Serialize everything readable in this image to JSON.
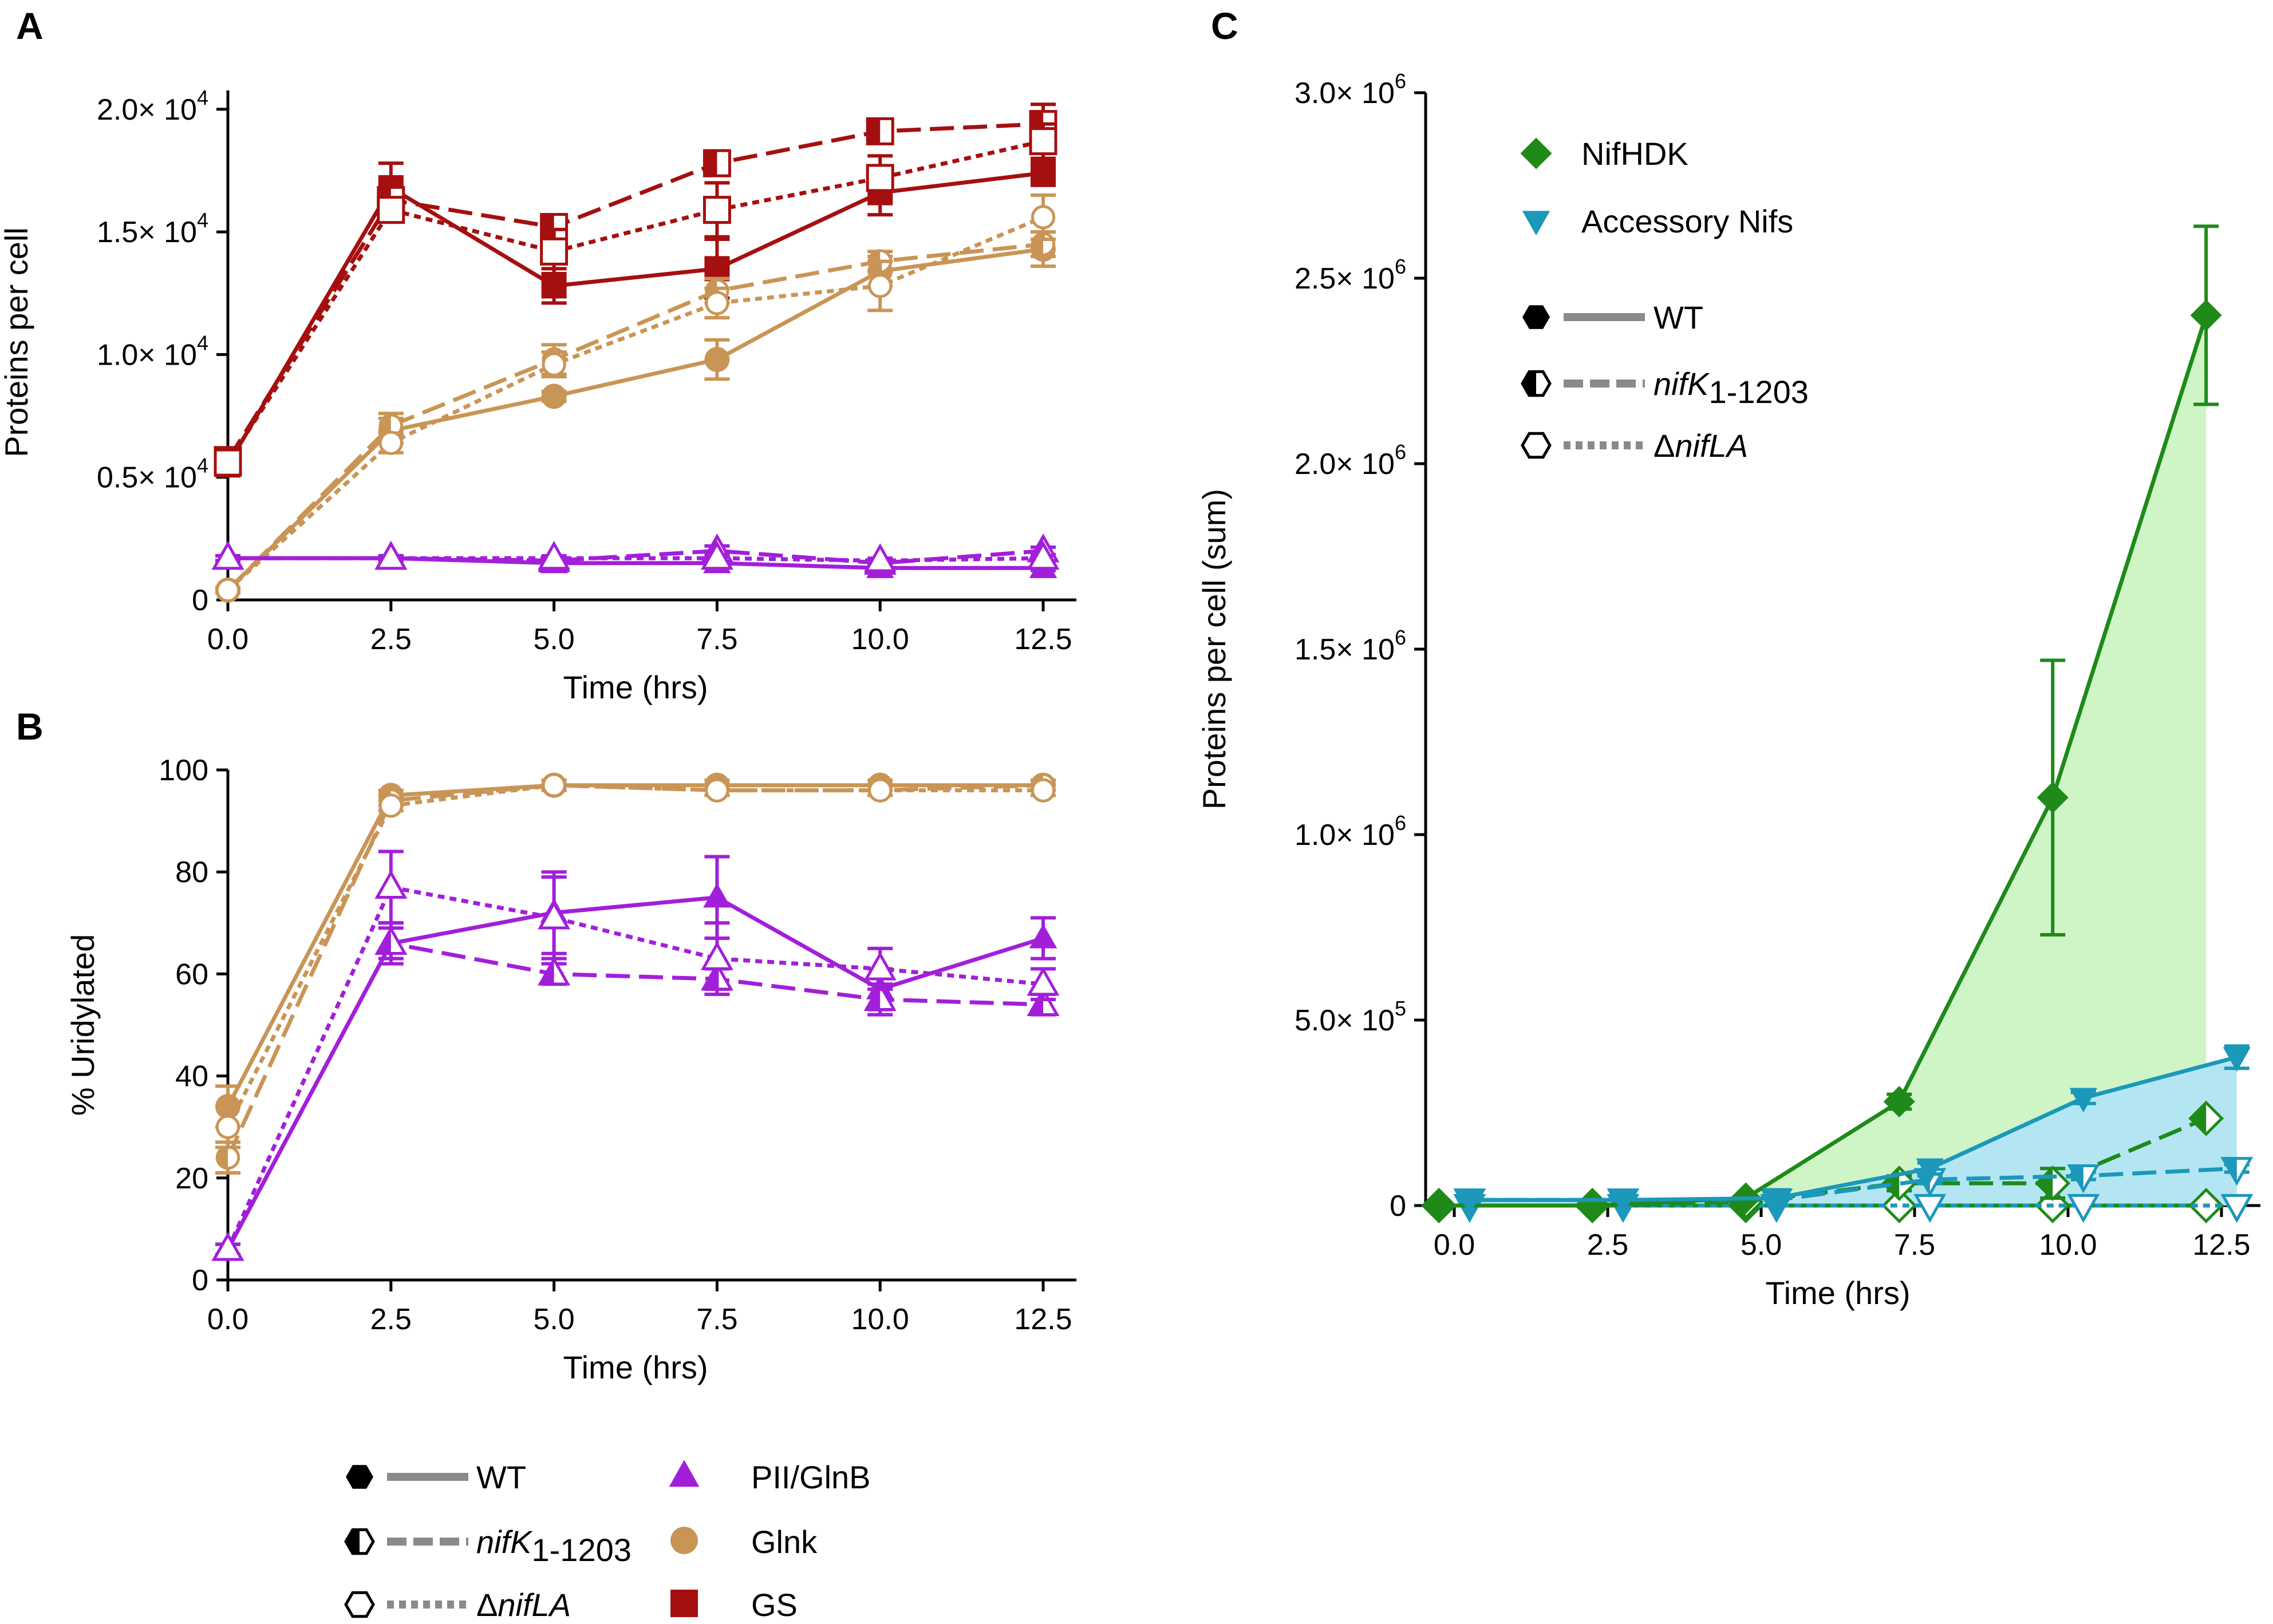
{
  "colors": {
    "gs": "#a50f0f",
    "glnk": "#c99556",
    "pii": "#a21fd9",
    "nifhdk": "#1f8a1a",
    "acc": "#1b98ba",
    "nifhdk_fill": "#cff5c6",
    "acc_fill": "#b3e6f2",
    "legend_line": "#8a8a8a"
  },
  "legend_bottom": {
    "strains": [
      {
        "label": "WT"
      },
      {
        "label_italic": "nifK",
        "label_sub": "1-1203"
      },
      {
        "label_prefix": "Δ",
        "label_italic": "nifLA"
      }
    ],
    "proteins": [
      {
        "label": "PII/GlnB"
      },
      {
        "label": "Glnk"
      },
      {
        "label": "GS"
      }
    ]
  },
  "legend_c": {
    "proteins": [
      {
        "label": "NifHDK"
      },
      {
        "label": "Accessory Nifs"
      }
    ],
    "strains": [
      {
        "label": "WT"
      },
      {
        "label_italic": "nifK",
        "label_sub": "1-1203"
      },
      {
        "label_prefix": "Δ",
        "label_italic": "nifLA"
      }
    ]
  },
  "chart_data": [
    {
      "panel": "A",
      "type": "line",
      "xlabel": "Time (hrs)",
      "ylabel": "Proteins per cell",
      "xlim": [
        0,
        12.5
      ],
      "ylim": [
        0,
        21000
      ],
      "xticks": [
        "0.0",
        "2.5",
        "5.0",
        "7.5",
        "10.0",
        "12.5"
      ],
      "yticks": [
        {
          "v": 0,
          "label": "0"
        },
        {
          "v": 5000,
          "mant": "0.5",
          "exp": "4"
        },
        {
          "v": 10000,
          "mant": "1.0",
          "exp": "4"
        },
        {
          "v": 15000,
          "mant": "1.5",
          "exp": "4"
        },
        {
          "v": 20000,
          "mant": "2.0",
          "exp": "4"
        }
      ],
      "x": [
        0,
        2.5,
        5,
        7.5,
        10,
        12.5
      ],
      "series": [
        {
          "protein": "PII/GlnB",
          "strain": "WT",
          "values": [
            1700,
            1700,
            1500,
            1500,
            1300,
            1300
          ],
          "err": [
            100,
            100,
            100,
            150,
            100,
            100
          ]
        },
        {
          "protein": "PII/GlnB",
          "strain": "nifK1-1203",
          "values": [
            1700,
            1700,
            1600,
            2000,
            1500,
            2000
          ],
          "err": [
            100,
            100,
            150,
            200,
            150,
            150
          ]
        },
        {
          "protein": "PII/GlnB",
          "strain": "ΔnifLA",
          "values": [
            1700,
            1700,
            1700,
            1700,
            1600,
            1700
          ],
          "err": [
            100,
            100,
            100,
            150,
            100,
            100
          ]
        },
        {
          "protein": "Glnk",
          "strain": "WT",
          "values": [
            400,
            6900,
            8300,
            9800,
            13400,
            14300
          ],
          "err": [
            100,
            500,
            200,
            800,
            600,
            700
          ]
        },
        {
          "protein": "Glnk",
          "strain": "nifK1-1203",
          "values": [
            400,
            7100,
            9800,
            12600,
            13800,
            14500
          ],
          "err": [
            100,
            500,
            600,
            500,
            400,
            500
          ]
        },
        {
          "protein": "Glnk",
          "strain": "ΔnifLA",
          "values": [
            400,
            6400,
            9600,
            12100,
            12800,
            15600
          ],
          "err": [
            100,
            400,
            500,
            600,
            1000,
            900
          ]
        },
        {
          "protein": "GS",
          "strain": "WT",
          "values": [
            5500,
            16800,
            12800,
            13500,
            16600,
            17400
          ],
          "err": [
            400,
            1000,
            700,
            1200,
            900,
            500
          ]
        },
        {
          "protein": "GS",
          "strain": "nifK1-1203",
          "values": [
            5700,
            16300,
            15200,
            17800,
            19100,
            19400
          ],
          "err": [
            300,
            500,
            500,
            500,
            400,
            800
          ]
        },
        {
          "protein": "GS",
          "strain": "ΔnifLA",
          "values": [
            5600,
            15900,
            14200,
            15900,
            17200,
            18700
          ],
          "err": [
            300,
            400,
            900,
            1100,
            900,
            700
          ]
        }
      ]
    },
    {
      "panel": "B",
      "type": "line",
      "xlabel": "Time (hrs)",
      "ylabel": "% Uridylated",
      "xlim": [
        0,
        12.5
      ],
      "ylim": [
        0,
        100
      ],
      "xticks": [
        "0.0",
        "2.5",
        "5.0",
        "7.5",
        "10.0",
        "12.5"
      ],
      "yticks": [
        {
          "v": 0,
          "label": "0"
        },
        {
          "v": 20,
          "label": "20"
        },
        {
          "v": 40,
          "label": "40"
        },
        {
          "v": 60,
          "label": "60"
        },
        {
          "v": 80,
          "label": "80"
        },
        {
          "v": 100,
          "label": "100"
        }
      ],
      "x": [
        0,
        2.5,
        5,
        7.5,
        10,
        12.5
      ],
      "series": [
        {
          "protein": "PII/GlnB",
          "strain": "WT",
          "values": [
            6,
            66,
            72,
            75,
            57,
            67
          ],
          "err": [
            1,
            4,
            8,
            8,
            4,
            4
          ]
        },
        {
          "protein": "PII/GlnB",
          "strain": "nifK1-1203",
          "values": [
            6,
            66,
            60,
            59,
            55,
            54
          ],
          "err": [
            1,
            3,
            2,
            2,
            3,
            2
          ]
        },
        {
          "protein": "PII/GlnB",
          "strain": "ΔnifLA",
          "values": [
            6,
            77,
            71,
            63,
            61,
            58
          ],
          "err": [
            1,
            7,
            8,
            7,
            4,
            3
          ]
        },
        {
          "protein": "Glnk",
          "strain": "WT",
          "values": [
            34,
            95,
            97,
            97,
            97,
            97
          ],
          "err": [
            4,
            1,
            1,
            1,
            1,
            1
          ]
        },
        {
          "protein": "Glnk",
          "strain": "nifK1-1203",
          "values": [
            24,
            94,
            97,
            96,
            96,
            97
          ],
          "err": [
            3,
            1,
            1,
            1,
            1,
            1
          ]
        },
        {
          "protein": "Glnk",
          "strain": "ΔnifLA",
          "values": [
            30,
            93,
            97,
            96,
            96,
            96
          ],
          "err": [
            4,
            1,
            1,
            1,
            1,
            1
          ]
        }
      ]
    },
    {
      "panel": "C",
      "type": "area",
      "xlabel": "Time (hrs)",
      "ylabel": "Proteins per cell (sum)",
      "xlim": [
        0,
        12.5
      ],
      "ylim": [
        0,
        3000000
      ],
      "xticks": [
        "0.0",
        "2.5",
        "5.0",
        "7.5",
        "10.0",
        "12.5"
      ],
      "yticks": [
        {
          "v": 0,
          "label": "0"
        },
        {
          "v": 500000,
          "mant": "5.0",
          "exp": "5"
        },
        {
          "v": 1000000,
          "mant": "1.0",
          "exp": "6"
        },
        {
          "v": 1500000,
          "mant": "1.5",
          "exp": "6"
        },
        {
          "v": 2000000,
          "mant": "2.0",
          "exp": "6"
        },
        {
          "v": 2500000,
          "mant": "2.5",
          "exp": "6"
        },
        {
          "v": 3000000,
          "mant": "3.0",
          "exp": "6"
        }
      ],
      "series": [
        {
          "protein": "NifHDK",
          "strain": "WT",
          "x": [
            -0.25,
            2.25,
            4.75,
            7.25,
            9.75,
            12.25
          ],
          "values": [
            0,
            0,
            20000,
            280000,
            1100000,
            2400000
          ],
          "err": [
            0,
            0,
            5000,
            20000,
            370000,
            240000
          ]
        },
        {
          "protein": "NifHDK",
          "strain": "nifK1-1203",
          "x": [
            -0.25,
            2.25,
            4.75,
            7.25,
            9.75,
            12.25
          ],
          "values": [
            0,
            0,
            10000,
            60000,
            60000,
            235000
          ],
          "err": [
            0,
            0,
            5000,
            20000,
            40000,
            10000
          ]
        },
        {
          "protein": "NifHDK",
          "strain": "ΔnifLA",
          "x": [
            -0.25,
            2.25,
            4.75,
            7.25,
            9.75,
            12.25
          ],
          "values": [
            0,
            0,
            0,
            0,
            0,
            0
          ],
          "err": [
            0,
            0,
            0,
            0,
            0,
            0
          ]
        },
        {
          "protein": "Accessory Nifs",
          "strain": "WT",
          "x": [
            0.25,
            2.75,
            5.25,
            7.75,
            10.25,
            12.75
          ],
          "values": [
            15000,
            15000,
            20000,
            100000,
            290000,
            400000
          ],
          "err": [
            0,
            0,
            5000,
            15000,
            15000,
            30000
          ]
        },
        {
          "protein": "Accessory Nifs",
          "strain": "nifK1-1203",
          "x": [
            0.25,
            2.75,
            5.25,
            7.75,
            10.25,
            12.75
          ],
          "values": [
            15000,
            15000,
            15000,
            70000,
            80000,
            100000
          ],
          "err": [
            0,
            0,
            3000,
            10000,
            10000,
            10000
          ]
        },
        {
          "protein": "Accessory Nifs",
          "strain": "ΔnifLA",
          "x": [
            0.25,
            2.75,
            5.25,
            7.75,
            10.25,
            12.75
          ],
          "values": [
            0,
            0,
            0,
            0,
            0,
            0
          ],
          "err": [
            0,
            0,
            0,
            0,
            0,
            0
          ]
        }
      ]
    }
  ]
}
